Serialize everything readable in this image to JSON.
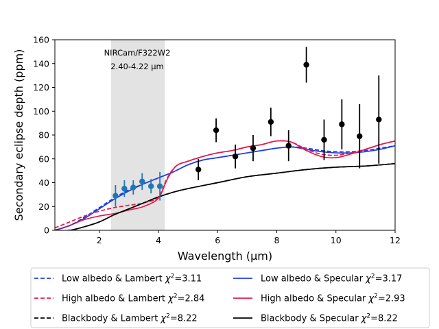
{
  "chart_data": {
    "type": "line",
    "title": "",
    "xlabel": "Wavelength (μm)",
    "ylabel": "Secondary eclipse depth (ppm)",
    "xlim": [
      0.5,
      12
    ],
    "ylim": [
      0,
      160
    ],
    "xticks": [
      2,
      4,
      6,
      8,
      10,
      12
    ],
    "yticks": [
      0,
      20,
      40,
      60,
      80,
      100,
      120,
      140,
      160
    ],
    "grid": false,
    "legend_position": "bottom, outside plot, two columns",
    "band": {
      "x": [
        2.4,
        4.22
      ],
      "label_line1": "NIRCam/F322W2",
      "label_line2": "2.40-4.22 μm",
      "color": "#e3e3e3"
    },
    "series": [
      {
        "name": "Low albedo & Lambert χ²=3.11",
        "name_parts": [
          "Low albedo & Lambert ",
          "2",
          "=3.11"
        ],
        "color": "#1f3ee0",
        "dash": true,
        "x": [
          0.5,
          1.0,
          1.5,
          2.0,
          2.5,
          3.0,
          3.5,
          4.0,
          4.5,
          5.0,
          5.5,
          6.0,
          6.5,
          7.0,
          7.5,
          8.0,
          8.5,
          9.0,
          9.5,
          10.0,
          10.5,
          11.0,
          11.5,
          12.0
        ],
        "y": [
          0,
          4,
          11,
          19,
          27,
          34,
          39,
          44,
          49,
          55,
          59,
          61,
          63,
          65,
          67,
          69,
          70,
          69,
          67,
          66,
          66,
          67,
          69,
          71
        ]
      },
      {
        "name": "Low albedo & Specular χ²=3.17",
        "name_parts": [
          "Low albedo & Specular ",
          "2",
          "=3.17"
        ],
        "color": "#1f3ee0",
        "dash": false,
        "x": [
          0.5,
          1.0,
          1.5,
          2.0,
          2.5,
          3.0,
          3.5,
          4.0,
          4.5,
          5.0,
          5.5,
          6.0,
          6.5,
          7.0,
          7.5,
          8.0,
          8.5,
          9.0,
          9.5,
          10.0,
          10.5,
          11.0,
          11.5,
          12.0
        ],
        "y": [
          0,
          4,
          10,
          18,
          26,
          33,
          39,
          44,
          49,
          55,
          59,
          61,
          63,
          65,
          67,
          69,
          70,
          68,
          66,
          65,
          65,
          66,
          68,
          71
        ]
      },
      {
        "name": "High albedo & Lambert χ²=2.84",
        "name_parts": [
          "High albedo & Lambert ",
          "2",
          "=2.84"
        ],
        "color": "#e8174a",
        "dash": true,
        "x": [
          0.5,
          1.0,
          1.5,
          2.0,
          2.5,
          3.0,
          3.5,
          4.0,
          4.3,
          4.6,
          5.0,
          5.5,
          6.0,
          6.5,
          7.0,
          7.5,
          8.0,
          8.5,
          9.0,
          9.5,
          10.0,
          10.5,
          11.0,
          11.5,
          12.0
        ],
        "y": [
          2,
          7,
          12,
          16,
          19,
          21,
          23,
          28,
          44,
          54,
          58,
          62,
          65,
          67,
          70,
          72,
          75,
          74,
          68,
          64,
          63,
          65,
          68,
          72,
          75
        ]
      },
      {
        "name": "High albedo & Specular χ²=2.93",
        "name_parts": [
          "High albedo & Specular ",
          "2",
          "=2.93"
        ],
        "color": "#e8174a",
        "dash": false,
        "x": [
          0.5,
          1.0,
          1.5,
          2.0,
          2.5,
          3.0,
          3.5,
          4.0,
          4.3,
          4.6,
          5.0,
          5.5,
          6.0,
          6.5,
          7.0,
          7.5,
          8.0,
          8.5,
          9.0,
          9.5,
          10.0,
          10.5,
          11.0,
          11.5,
          12.0
        ],
        "y": [
          0,
          4,
          9,
          12,
          14,
          17,
          20,
          27,
          43,
          54,
          58,
          62,
          65,
          67,
          70,
          72,
          75,
          74,
          67,
          62,
          61,
          64,
          68,
          72,
          75
        ]
      },
      {
        "name": "Blackbody & Lambert χ²=8.22",
        "name_parts": [
          "Blackbody & Lambert ",
          "2",
          "=8.22"
        ],
        "color": "#000000",
        "dash": true,
        "x": [
          0.5,
          1.0,
          1.5,
          2.0,
          2.5,
          3.0,
          3.5,
          4.0,
          4.5,
          5.0,
          6.0,
          7.0,
          8.0,
          9.0,
          10.0,
          11.0,
          12.0
        ],
        "y": [
          0,
          0,
          3,
          7,
          13,
          18,
          23,
          28,
          32,
          35,
          40,
          45,
          48,
          51,
          53,
          54,
          56
        ]
      },
      {
        "name": "Blackbody & Specular χ²=8.22",
        "name_parts": [
          "Blackbody & Specular ",
          "2",
          "=8.22"
        ],
        "color": "#000000",
        "dash": false,
        "x": [
          0.5,
          1.0,
          1.5,
          2.0,
          2.5,
          3.0,
          3.5,
          4.0,
          4.5,
          5.0,
          6.0,
          7.0,
          8.0,
          9.0,
          10.0,
          11.0,
          12.0
        ],
        "y": [
          0,
          0,
          3,
          7,
          13,
          18,
          23,
          28,
          32,
          35,
          40,
          45,
          48,
          51,
          53,
          54,
          56
        ]
      }
    ],
    "points_nircam": {
      "color": "#1f77b4",
      "x": [
        2.55,
        2.85,
        3.15,
        3.45,
        3.75,
        4.05
      ],
      "y": [
        29,
        35,
        36,
        41,
        37,
        37
      ],
      "err": [
        9,
        7,
        6,
        7,
        6,
        12
      ]
    },
    "points_other": {
      "color": "#000000",
      "x": [
        5.35,
        5.95,
        6.6,
        7.2,
        7.8,
        8.4,
        9.0,
        9.6,
        10.2,
        10.8,
        11.45
      ],
      "y": [
        51,
        84,
        62,
        69,
        91,
        71,
        139,
        76,
        89,
        79,
        93
      ],
      "err": [
        9,
        10,
        10,
        11,
        12,
        13,
        15,
        17,
        21,
        27,
        37
      ]
    }
  }
}
